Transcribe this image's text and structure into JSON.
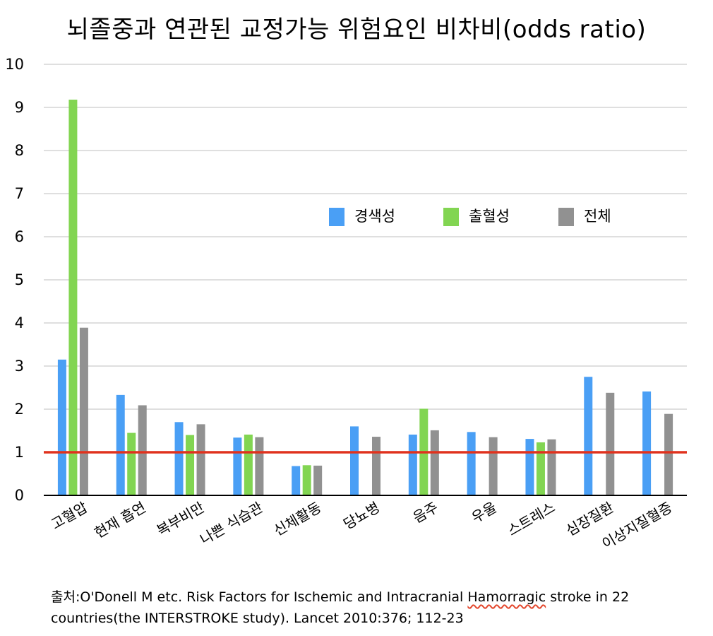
{
  "chart_data": {
    "type": "bar",
    "title": "뇌졸중과 연관된 교정가능 위험요인 비차비(odds ratio)",
    "categories": [
      "고혈압",
      "현재 흡연",
      "복부비만",
      "나쁜 식습관",
      "신체활동",
      "당뇨병",
      "음주",
      "우울",
      "스트레스",
      "심장질환",
      "이상지질혈증"
    ],
    "series": [
      {
        "name": "경색성",
        "color": "#4a9ff5",
        "values": [
          3.15,
          2.33,
          1.7,
          1.34,
          0.68,
          1.6,
          1.41,
          1.47,
          1.31,
          2.75,
          2.41
        ]
      },
      {
        "name": "출혈성",
        "color": "#82d552",
        "values": [
          9.18,
          1.45,
          1.4,
          1.41,
          0.7,
          null,
          2.01,
          null,
          1.23,
          null,
          null
        ]
      },
      {
        "name": "전체",
        "color": "#919191",
        "values": [
          3.89,
          2.09,
          1.65,
          1.35,
          0.69,
          1.36,
          1.51,
          1.35,
          1.3,
          2.38,
          1.89
        ]
      }
    ],
    "ylim": [
      0,
      10
    ],
    "yticks": [
      0,
      1,
      2,
      3,
      4,
      5,
      6,
      7,
      8,
      9,
      10
    ],
    "reference_line": {
      "value": 1,
      "color": "#e0321e"
    },
    "grid": true,
    "legend_position": "center-right"
  },
  "source": {
    "prefix": "출처:O'Donell M etc. Risk Factors for Ischemic and Intracranial ",
    "flagged_word": "Hamorragic",
    "suffix": " stroke in 22 countries(the INTERSTROKE study). Lancet 2010:376; 112-23"
  }
}
